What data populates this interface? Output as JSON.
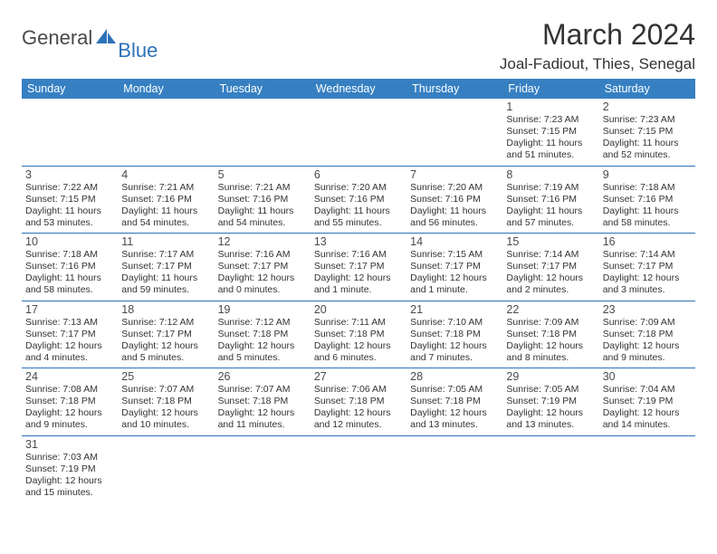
{
  "logo": {
    "general": "General",
    "blue": "Blue"
  },
  "title": "March 2024",
  "location": "Joal-Fadiout, Thies, Senegal",
  "colors": {
    "header_bg": "#3680c2",
    "header_fg": "#ffffff",
    "border": "#2d72b8",
    "text": "#333333",
    "logo_gray": "#4a4a4a",
    "logo_blue": "#2d72b8"
  },
  "weekdays": [
    "Sunday",
    "Monday",
    "Tuesday",
    "Wednesday",
    "Thursday",
    "Friday",
    "Saturday"
  ],
  "days": {
    "1": {
      "sunrise": "7:23 AM",
      "sunset": "7:15 PM",
      "daylight": "11 hours and 51 minutes."
    },
    "2": {
      "sunrise": "7:23 AM",
      "sunset": "7:15 PM",
      "daylight": "11 hours and 52 minutes."
    },
    "3": {
      "sunrise": "7:22 AM",
      "sunset": "7:15 PM",
      "daylight": "11 hours and 53 minutes."
    },
    "4": {
      "sunrise": "7:21 AM",
      "sunset": "7:16 PM",
      "daylight": "11 hours and 54 minutes."
    },
    "5": {
      "sunrise": "7:21 AM",
      "sunset": "7:16 PM",
      "daylight": "11 hours and 54 minutes."
    },
    "6": {
      "sunrise": "7:20 AM",
      "sunset": "7:16 PM",
      "daylight": "11 hours and 55 minutes."
    },
    "7": {
      "sunrise": "7:20 AM",
      "sunset": "7:16 PM",
      "daylight": "11 hours and 56 minutes."
    },
    "8": {
      "sunrise": "7:19 AM",
      "sunset": "7:16 PM",
      "daylight": "11 hours and 57 minutes."
    },
    "9": {
      "sunrise": "7:18 AM",
      "sunset": "7:16 PM",
      "daylight": "11 hours and 58 minutes."
    },
    "10": {
      "sunrise": "7:18 AM",
      "sunset": "7:16 PM",
      "daylight": "11 hours and 58 minutes."
    },
    "11": {
      "sunrise": "7:17 AM",
      "sunset": "7:17 PM",
      "daylight": "11 hours and 59 minutes."
    },
    "12": {
      "sunrise": "7:16 AM",
      "sunset": "7:17 PM",
      "daylight": "12 hours and 0 minutes."
    },
    "13": {
      "sunrise": "7:16 AM",
      "sunset": "7:17 PM",
      "daylight": "12 hours and 1 minute."
    },
    "14": {
      "sunrise": "7:15 AM",
      "sunset": "7:17 PM",
      "daylight": "12 hours and 1 minute."
    },
    "15": {
      "sunrise": "7:14 AM",
      "sunset": "7:17 PM",
      "daylight": "12 hours and 2 minutes."
    },
    "16": {
      "sunrise": "7:14 AM",
      "sunset": "7:17 PM",
      "daylight": "12 hours and 3 minutes."
    },
    "17": {
      "sunrise": "7:13 AM",
      "sunset": "7:17 PM",
      "daylight": "12 hours and 4 minutes."
    },
    "18": {
      "sunrise": "7:12 AM",
      "sunset": "7:17 PM",
      "daylight": "12 hours and 5 minutes."
    },
    "19": {
      "sunrise": "7:12 AM",
      "sunset": "7:18 PM",
      "daylight": "12 hours and 5 minutes."
    },
    "20": {
      "sunrise": "7:11 AM",
      "sunset": "7:18 PM",
      "daylight": "12 hours and 6 minutes."
    },
    "21": {
      "sunrise": "7:10 AM",
      "sunset": "7:18 PM",
      "daylight": "12 hours and 7 minutes."
    },
    "22": {
      "sunrise": "7:09 AM",
      "sunset": "7:18 PM",
      "daylight": "12 hours and 8 minutes."
    },
    "23": {
      "sunrise": "7:09 AM",
      "sunset": "7:18 PM",
      "daylight": "12 hours and 9 minutes."
    },
    "24": {
      "sunrise": "7:08 AM",
      "sunset": "7:18 PM",
      "daylight": "12 hours and 9 minutes."
    },
    "25": {
      "sunrise": "7:07 AM",
      "sunset": "7:18 PM",
      "daylight": "12 hours and 10 minutes."
    },
    "26": {
      "sunrise": "7:07 AM",
      "sunset": "7:18 PM",
      "daylight": "12 hours and 11 minutes."
    },
    "27": {
      "sunrise": "7:06 AM",
      "sunset": "7:18 PM",
      "daylight": "12 hours and 12 minutes."
    },
    "28": {
      "sunrise": "7:05 AM",
      "sunset": "7:18 PM",
      "daylight": "12 hours and 13 minutes."
    },
    "29": {
      "sunrise": "7:05 AM",
      "sunset": "7:19 PM",
      "daylight": "12 hours and 13 minutes."
    },
    "30": {
      "sunrise": "7:04 AM",
      "sunset": "7:19 PM",
      "daylight": "12 hours and 14 minutes."
    },
    "31": {
      "sunrise": "7:03 AM",
      "sunset": "7:19 PM",
      "daylight": "12 hours and 15 minutes."
    }
  },
  "labels": {
    "sunrise": "Sunrise: ",
    "sunset": "Sunset: ",
    "daylight": "Daylight: "
  },
  "layout": {
    "first_weekday_index": 5,
    "num_days": 31
  }
}
